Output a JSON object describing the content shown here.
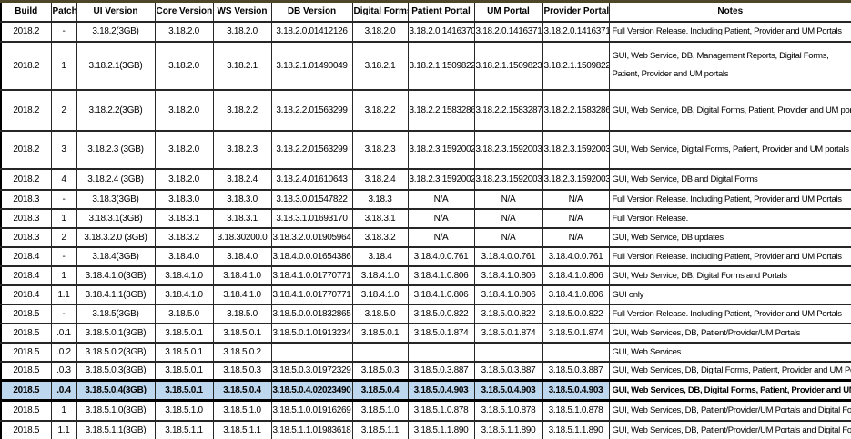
{
  "columns": [
    {
      "label": "Build"
    },
    {
      "label": "Patch"
    },
    {
      "label": "UI Version"
    },
    {
      "label": "Core Version"
    },
    {
      "label": "WS Version"
    },
    {
      "label": "DB Version"
    },
    {
      "label": "Digital Forms"
    },
    {
      "label": "Patient Portal"
    },
    {
      "label": "UM Portal"
    },
    {
      "label": "Provider Portal"
    },
    {
      "label": "Notes"
    }
  ],
  "rows": [
    {
      "cells": [
        "2018.2",
        "-",
        "3.18.2(3GB)",
        "3.18.2.0",
        "3.18.2.0",
        "3.18.2.0.01412126",
        "3.18.2.0",
        "3.18.2.0.1416370",
        "3.18.2.0.1416371",
        "3.18.2.0.1416371",
        "Full Version Release. Including Patient, Provider and UM Portals"
      ]
    },
    {
      "wrap_notes": true,
      "cells": [
        "2018.2",
        "1",
        "3.18.2.1(3GB)",
        "3.18.2.0",
        "3.18.2.1",
        "3.18.2.1.01490049",
        "3.18.2.1",
        "3.18.2.1.1509822",
        "3.18.2.1.1509823",
        "3.18.2.1.1509822",
        "GUI, Web Service, DB, Management Reports, Digital Forms, Patient, Provider and UM portals"
      ]
    },
    {
      "cells": [
        "2018.2",
        "2",
        "3.18.2.2(3GB)",
        "3.18.2.0",
        "3.18.2.2",
        "3.18.2.2.01563299",
        "3.18.2.2",
        "3.18.2.2.1583286",
        "3.18.2.2.1583287",
        "3.18.2.2.1583286",
        "GUI, Web Service, DB, Digital Forms, Patient, Provider and UM portals"
      ]
    },
    {
      "cells": [
        "2018.2",
        "3",
        "3.18.2.3 (3GB)",
        "3.18.2.0",
        "3.18.2.3",
        "3.18.2.2.01563299",
        "3.18.2.3",
        "3.18.2.3.1592002",
        "3.18.2.3.1592003",
        "3.18.2.3.1592003",
        "GUI, Web Service, Digital Forms, Patient, Provider and UM portals"
      ]
    },
    {
      "cells": [
        "2018.2",
        "4",
        "3.18.2.4 (3GB)",
        "3.18.2.0",
        "3.18.2.4",
        "3.18.2.4.01610643",
        "3.18.2.4",
        "3.18.2.3.1592002",
        "3.18.2.3.1592003",
        "3.18.2.3.1592003",
        "GUI, Web Service, DB and Digital Forms"
      ]
    },
    {
      "cells": [
        "2018.3",
        "-",
        "3.18.3(3GB)",
        "3.18.3.0",
        "3.18.3.0",
        "3.18.3.0.01547822",
        "3.18.3",
        "N/A",
        "N/A",
        "N/A",
        "Full Version Release. Including Patient, Provider and UM Portals"
      ]
    },
    {
      "cells": [
        "2018.3",
        "1",
        "3.18.3.1(3GB)",
        "3.18.3.1",
        "3.18.3.1",
        "3.18.3.1.01693170",
        "3.18.3.1",
        "N/A",
        "N/A",
        "N/A",
        "Full Version Release."
      ]
    },
    {
      "cells": [
        "2018.3",
        "2",
        "3.18.3.2.0 (3GB)",
        "3.18.3.2",
        "3.18.30200.0",
        "3.18.3.2.0.01905964",
        "3.18.3.2",
        "N/A",
        "N/A",
        "N/A",
        "GUI, Web Service, DB updates"
      ]
    },
    {
      "cells": [
        "2018.4",
        "-",
        "3.18.4(3GB)",
        "3.18.4.0",
        "3.18.4.0",
        "3.18.4.0.0.01654386",
        "3.18.4",
        "3.18.4.0.0.761",
        "3.18.4.0.0.761",
        "3.18.4.0.0.761",
        "Full Version Release. Including Patient, Provider and UM Portals"
      ]
    },
    {
      "cells": [
        "2018.4",
        "1",
        "3.18.4.1.0(3GB)",
        "3.18.4.1.0",
        "3.18.4.1.0",
        "3.18.4.1.0.01770771",
        "3.18.4.1.0",
        "3.18.4.1.0.806",
        "3.18.4.1.0.806",
        "3.18.4.1.0.806",
        "GUI, Web Service, DB, Digital Forms and Portals"
      ]
    },
    {
      "cells": [
        "2018.4",
        "1.1",
        "3.18.4.1.1(3GB)",
        "3.18.4.1.0",
        "3.18.4.1.0",
        "3.18.4.1.0.01770771",
        "3.18.4.1.0",
        "3.18.4.1.0.806",
        "3.18.4.1.0.806",
        "3.18.4.1.0.806",
        "GUI only"
      ]
    },
    {
      "cells": [
        "2018.5",
        "-",
        "3.18.5(3GB)",
        "3.18.5.0",
        "3.18.5.0",
        "3.18.5.0.0.01832865",
        "3.18.5.0",
        "3.18.5.0.0.822",
        "3.18.5.0.0.822",
        "3.18.5.0.0.822",
        "Full Version Release. Including Patient, Provider and UM Portals"
      ]
    },
    {
      "cells": [
        "2018.5",
        ".0.1",
        "3.18.5.0.1(3GB)",
        "3.18.5.0.1",
        "3.18.5.0.1",
        "3.18.5.0.1.01913234",
        "3.18.5.0.1",
        "3.18.5.0.1.874",
        "3.18.5.0.1.874",
        "3.18.5.0.1.874",
        "GUI, Web Services, DB, Patient/Provider/UM Portals"
      ]
    },
    {
      "cells": [
        "2018.5",
        ".0.2",
        "3.18.5.0.2(3GB)",
        "3.18.5.0.1",
        "3.18.5.0.2",
        "",
        "",
        "",
        "",
        "",
        "GUI, Web Services"
      ]
    },
    {
      "cells": [
        "2018.5",
        ".0.3",
        "3.18.5.0.3(3GB)",
        "3.18.5.0.1",
        "3.18.5.0.3",
        "3.18.5.0.3.01972329",
        "3.18.5.0.3",
        "3.18.5.0.3.887",
        "3.18.5.0.3.887",
        "3.18.5.0.3.887",
        "GUI, Web Services, DB, Digital Forms, Patient, Provider and UM Portals"
      ]
    },
    {
      "highlight": true,
      "cells": [
        "2018.5",
        ".0.4",
        "3.18.5.0.4(3GB)",
        "3.18.5.0.1",
        "3.18.5.0.4",
        "3.18.5.0.4.02023490",
        "3.18.5.0.4",
        "3.18.5.0.4.903",
        "3.18.5.0.4.903",
        "3.18.5.0.4.903",
        "GUI, Web Services, DB, Digital Forms, Patient, Provider and UM Portals"
      ]
    },
    {
      "cells": [
        "2018.5",
        "1",
        "3.18.5.1.0(3GB)",
        "3.18.5.1.0",
        "3.18.5.1.0",
        "3.18.5.1.0.01916269",
        "3.18.5.1.0",
        "3.18.5.1.0.878",
        "3.18.5.1.0.878",
        "3.18.5.1.0.878",
        "GUI, Web Services, DB, Patient/Provider/UM Portals and Digital Forms"
      ]
    },
    {
      "cells": [
        "2018.5",
        "1.1",
        "3.18.5.1.1(3GB)",
        "3.18.5.1.1",
        "3.18.5.1.1",
        "3.18.5.1.1.01983618",
        "3.18.5.1.1",
        "3.18.5.1.1.890",
        "3.18.5.1.1.890",
        "3.18.5.1.1.890",
        "GUI, Web Services, DB, Patient/Provider/UM Portals and Digital Forms"
      ]
    }
  ],
  "colors": {
    "highlight_bg": "#bdd7ee",
    "grid_border": "#000000",
    "top_accent": "#4d4627"
  }
}
